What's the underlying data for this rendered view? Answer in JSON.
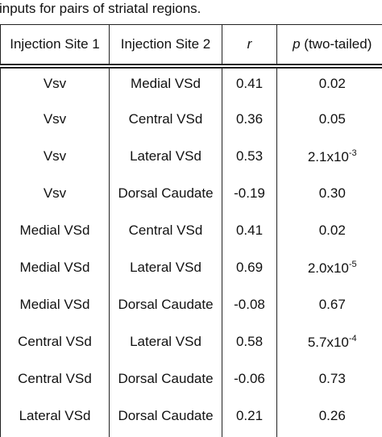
{
  "caption": "inputs for pairs of striatal regions.",
  "table": {
    "header": [
      "Injection Site 1",
      "Injection Site 2",
      {
        "italic": "r"
      },
      {
        "italic": "p",
        "rest": "(two-tailed)"
      }
    ],
    "rows": [
      [
        "Vsv",
        "Medial VSd",
        "0.41",
        "0.02"
      ],
      [
        "Vsv",
        "Central VSd",
        "0.36",
        "0.05"
      ],
      [
        "Vsv",
        "Lateral VSd",
        "0.53",
        {
          "mantissa": "2.1x10",
          "exponent": "-3"
        }
      ],
      [
        "Vsv",
        "Dorsal Caudate",
        "-0.19",
        "0.30"
      ],
      [
        "Medial VSd",
        "Central VSd",
        "0.41",
        "0.02"
      ],
      [
        "Medial VSd",
        "Lateral VSd",
        "0.69",
        {
          "mantissa": "2.0x10",
          "exponent": "-5"
        }
      ],
      [
        "Medial VSd",
        "Dorsal Caudate",
        "-0.08",
        "0.67"
      ],
      [
        "Central VSd",
        "Lateral VSd",
        "0.58",
        {
          "mantissa": "5.7x10",
          "exponent": "-4"
        }
      ],
      [
        "Central VSd",
        "Dorsal Caudate",
        "-0.06",
        "0.73"
      ],
      [
        "Lateral VSd",
        "Dorsal Caudate",
        "0.21",
        "0.26"
      ]
    ]
  }
}
